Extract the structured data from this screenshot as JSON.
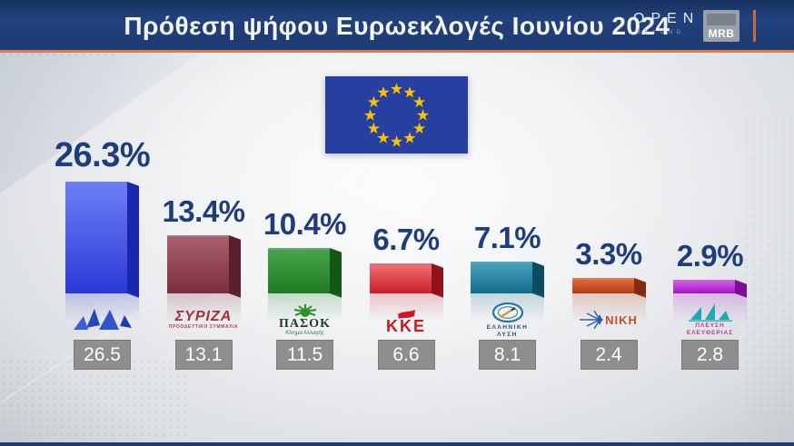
{
  "header": {
    "title": "Πρόθεση ψήφου Ευρωεκλογές Ιουνίου 2024",
    "channel": {
      "name": "OPEN",
      "tagline": "BEYOND"
    },
    "pollster": "MRB"
  },
  "colors": {
    "header_bg": "#1d3b73",
    "accent_orange": "#dd7a4a",
    "percent_text": "#1e3d7d",
    "value_box_bg": "#8e8e8e",
    "value_box_text": "#ffffff",
    "flag_bg": "#27409f",
    "flag_star": "#f8c300",
    "bottom_strip": "#1d3b73"
  },
  "chart_data": {
    "type": "bar",
    "title": "Πρόθεση ψήφου Ευρωεκλογές Ιουνίου 2024",
    "categories": [
      "ΝΔ",
      "ΣΥΡΙΖΑ",
      "ΠΑΣΟΚ",
      "ΚΚΕ",
      "ΕΛΛΗΝΙΚΗ ΛΥΣΗ",
      "ΝΙΚΗ",
      "ΠΛΕΥΣΗ ΕΛΕΥΘΕΡΙΑΣ"
    ],
    "series": [
      {
        "name": "current",
        "values": [
          26.3,
          13.4,
          10.4,
          6.7,
          7.1,
          3.3,
          2.9
        ]
      },
      {
        "name": "previous",
        "values": [
          26.5,
          13.1,
          11.5,
          6.6,
          8.1,
          2.4,
          2.8
        ]
      }
    ],
    "value_suffix": "%",
    "orientation": "vertical",
    "legend": false,
    "gridlines": false
  },
  "parties": [
    {
      "name": "ΝΔ",
      "pct_label": "26.3%",
      "value": 26.3,
      "prev_label": "26.5",
      "bar_top": "#6c7ef4",
      "bar_bottom": "#2c38d6",
      "bar_side": "#1b26ae",
      "logo_icon": "nd-flag-icon"
    },
    {
      "name": "ΣΥΡΙΖΑ",
      "pct_label": "13.4%",
      "value": 13.4,
      "prev_label": "13.1",
      "bar_top": "#a85f6c",
      "bar_bottom": "#7c2e3e",
      "bar_side": "#5a1f2c",
      "logo_text": "ΣΥΡΙΖΑ",
      "logo_subtext": "ΠΡΟΟΔΕΥΤΙΚΗ ΣΥΜΜΑΧΙΑ"
    },
    {
      "name": "ΠΑΣΟΚ",
      "pct_label": "10.4%",
      "value": 10.4,
      "prev_label": "11.5",
      "bar_top": "#46a349",
      "bar_bottom": "#1d7c23",
      "bar_side": "#145617",
      "logo_text": "ΠΑΣΟΚ",
      "logo_subtext": "Κίνημα Αλλαγής"
    },
    {
      "name": "ΚΚΕ",
      "pct_label": "6.7%",
      "value": 6.7,
      "prev_label": "6.6",
      "bar_top": "#ef6d72",
      "bar_bottom": "#c91e28",
      "bar_side": "#8e1218",
      "logo_text": "ΚΚΕ"
    },
    {
      "name": "ΕΛΛΗΝΙΚΗ ΛΥΣΗ",
      "pct_label": "7.1%",
      "value": 7.1,
      "prev_label": "8.1",
      "bar_top": "#47a0ba",
      "bar_bottom": "#0f6d88",
      "bar_side": "#0a4d61",
      "logo_text": "ΕΛΛΗΝΙΚΗ",
      "logo_subtext": "ΛΥΣΗ"
    },
    {
      "name": "ΝΙΚΗ",
      "pct_label": "3.3%",
      "value": 3.3,
      "prev_label": "2.4",
      "bar_top": "#e06a35",
      "bar_bottom": "#b03a14",
      "bar_side": "#852a0e",
      "logo_text": "ΝΙΚΗ"
    },
    {
      "name": "ΠΛΕΥΣΗ ΕΛΕΥΘΕΡΙΑΣ",
      "pct_label": "2.9%",
      "value": 2.9,
      "prev_label": "2.8",
      "bar_top": "#cf58e0",
      "bar_bottom": "#a415c6",
      "bar_side": "#7c0f96",
      "logo_text": "ΠΛΕΥΣΗ",
      "logo_subtext": "ΕΛΕΥΘΕΡΙΑΣ"
    }
  ]
}
